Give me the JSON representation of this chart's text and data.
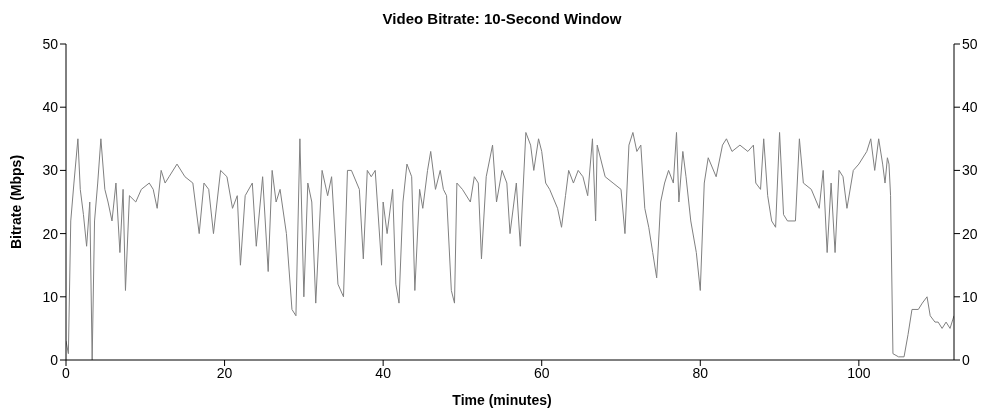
{
  "chart_data": {
    "type": "line",
    "title": "Video Bitrate: 10-Second Window",
    "xlabel": "Time (minutes)",
    "ylabel": "Bitrate (Mbps)",
    "x": [
      0,
      0.3,
      0.6,
      1,
      1.5,
      1.8,
      2.2,
      2.6,
      3,
      3.3,
      3.6,
      4,
      4.4,
      4.9,
      5.3,
      5.8,
      6.3,
      6.8,
      7.2,
      7.5,
      8,
      8.8,
      9.5,
      10.5,
      11,
      11.5,
      12,
      12.5,
      13,
      14,
      15,
      16,
      16.8,
      17.4,
      18,
      18.6,
      19.5,
      20.3,
      21,
      21.6,
      22,
      22.6,
      23.5,
      24,
      24.8,
      25.5,
      26,
      26.5,
      27,
      27.8,
      28.5,
      29,
      29.5,
      30,
      30.5,
      31,
      31.5,
      32.3,
      33,
      33.5,
      34.3,
      35,
      35.5,
      36,
      37,
      37.5,
      38,
      38.5,
      39,
      39.8,
      40,
      40.5,
      41.2,
      41.6,
      42,
      42.5,
      43,
      43.6,
      44,
      44.6,
      45,
      45.6,
      46,
      46.6,
      47.2,
      47.6,
      48,
      48.6,
      49,
      49.3,
      50,
      51,
      51.5,
      52,
      52.4,
      53,
      53.8,
      54.3,
      55,
      55.6,
      56,
      56.8,
      57.3,
      58,
      58.6,
      59,
      59.6,
      60,
      60.5,
      61,
      62,
      62.5,
      63,
      63.4,
      64,
      64.6,
      65.2,
      65.8,
      66.4,
      66.8,
      67,
      68,
      69,
      70,
      70.5,
      71,
      71.5,
      72,
      72.5,
      73,
      73.5,
      74,
      74.5,
      75,
      75.5,
      76,
      76.6,
      77,
      77.3,
      77.8,
      78.2,
      78.8,
      79.5,
      80,
      80.5,
      81,
      82,
      82.8,
      83.3,
      84,
      85,
      86,
      86.7,
      87,
      87.6,
      88,
      88.5,
      89,
      89.5,
      90,
      90.5,
      91,
      92,
      92.5,
      93,
      94,
      95,
      95.5,
      96,
      96.5,
      97,
      97.5,
      98,
      98.5,
      99.3,
      100,
      101,
      101.5,
      102,
      102.5,
      103,
      103.3,
      103.6,
      103.8,
      104,
      104.3,
      105,
      105.7,
      106.2,
      106.7,
      107.5,
      108,
      108.6,
      109,
      109.6,
      110,
      110.5,
      111,
      111.5,
      112
    ],
    "series": [
      {
        "color": "#808080",
        "values": [
          3,
          1,
          22,
          28,
          35,
          27,
          23,
          18,
          25,
          0,
          22,
          28,
          35,
          27,
          25,
          22,
          28,
          17,
          27,
          11,
          26,
          25,
          27,
          28,
          27,
          24,
          30,
          28,
          29,
          31,
          29,
          28,
          20,
          28,
          27,
          20,
          30,
          29,
          24,
          26,
          15,
          26,
          28,
          18,
          29,
          14,
          30,
          25,
          27,
          20,
          8,
          7,
          35,
          10,
          28,
          25,
          9,
          30,
          26,
          29,
          12,
          10,
          30,
          30,
          27,
          16,
          30,
          29,
          30,
          15,
          25,
          20,
          27,
          12,
          9,
          25,
          31,
          29,
          11,
          27,
          24,
          30,
          33,
          27,
          30,
          27,
          26,
          11,
          9,
          28,
          27,
          25,
          29,
          28,
          16,
          29,
          34,
          25,
          30,
          28,
          20,
          28,
          18,
          36,
          34,
          30,
          35,
          33,
          28,
          27,
          24,
          21,
          26,
          30,
          28,
          30,
          29,
          26,
          35,
          22,
          34,
          29,
          28,
          27,
          20,
          34,
          36,
          33,
          34,
          24,
          21,
          17,
          13,
          25,
          28,
          30,
          28,
          36,
          25,
          33,
          29,
          22,
          17,
          11,
          28,
          32,
          29,
          34,
          35,
          33,
          34,
          33,
          34,
          28,
          27,
          35,
          26,
          22,
          21,
          36,
          23,
          22,
          22,
          35,
          28,
          27,
          24,
          30,
          17,
          28,
          17,
          30,
          29,
          24,
          30,
          31,
          33,
          35,
          30,
          35,
          31,
          28,
          32,
          31,
          26,
          1,
          0.5,
          0.5,
          4,
          8,
          8,
          9,
          10,
          7,
          6,
          6,
          5,
          6,
          5,
          7
        ]
      }
    ],
    "xlim": [
      0,
      112
    ],
    "xticks": [
      0,
      20,
      40,
      60,
      80,
      100
    ],
    "ylim": [
      0,
      50
    ],
    "yticks": [
      0,
      10,
      20,
      30,
      40,
      50
    ],
    "y2lim": [
      0,
      50
    ],
    "y2ticks": [
      0,
      10,
      20,
      30,
      40,
      50
    ],
    "grid": false,
    "marker": "none",
    "line_style": "solid"
  }
}
